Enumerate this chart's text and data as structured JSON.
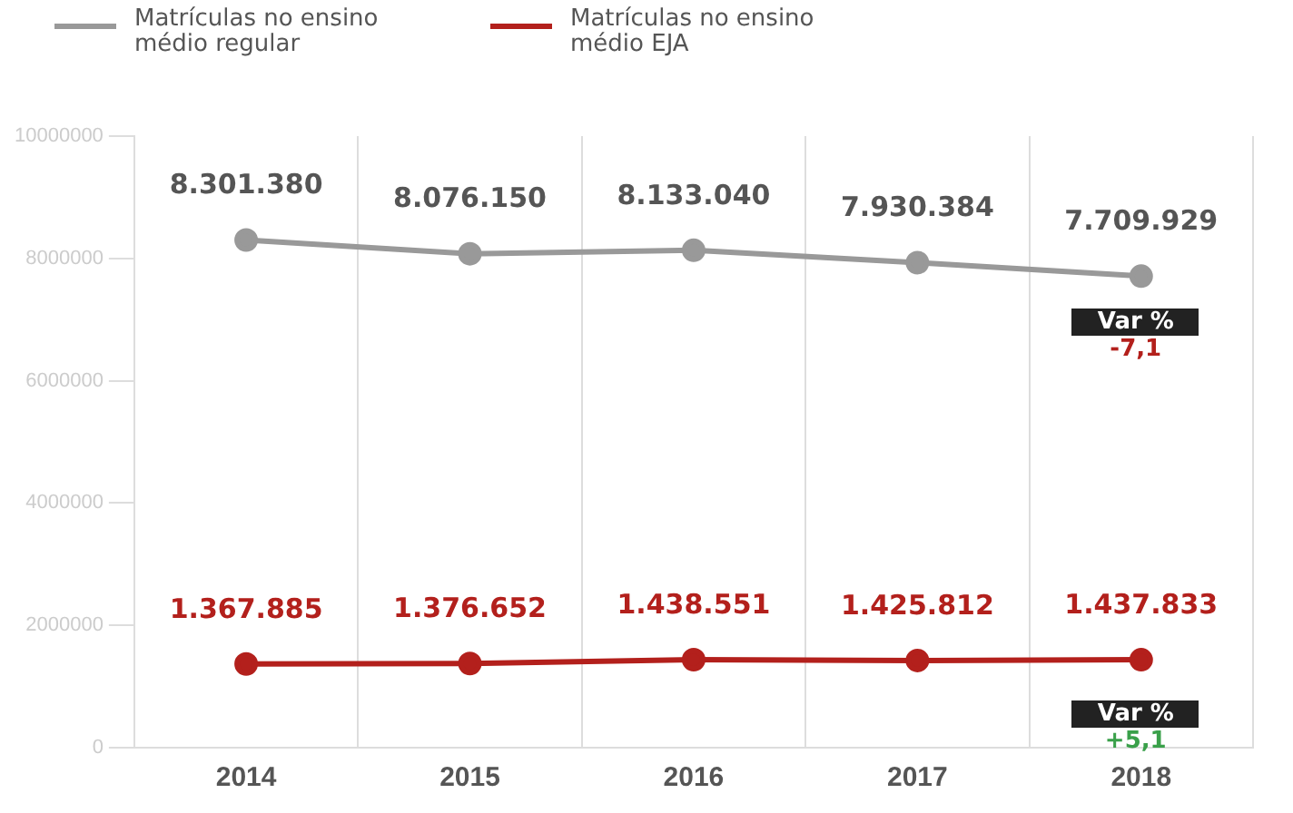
{
  "chart_data": {
    "type": "line",
    "categories": [
      "2014",
      "2015",
      "2016",
      "2017",
      "2018"
    ],
    "series": [
      {
        "name": "Matrículas no ensino médio regular",
        "color": "#999999",
        "values": [
          8301380,
          8076150,
          8133040,
          7930384,
          7709929
        ],
        "value_labels": [
          "8.301.380",
          "8.076.150",
          "8.133.040",
          "7.930.384",
          "7.709.929"
        ]
      },
      {
        "name": "Matrículas no ensino médio EJA",
        "color": "#b3201c",
        "values": [
          1367885,
          1376652,
          1438551,
          1425812,
          1437833
        ],
        "value_labels": [
          "1.367.885",
          "1.376.652",
          "1.438.551",
          "1.425.812",
          "1.437.833"
        ]
      }
    ],
    "ylim": [
      0,
      10000000
    ],
    "yticks": [
      0,
      2000000,
      4000000,
      6000000,
      8000000,
      10000000
    ],
    "grid": "x",
    "legend": "top left",
    "marker": "circle",
    "line_style": "solid",
    "annotations": [
      "Var %\n-7,1",
      "Var %\n+5,1"
    ]
  }
}
